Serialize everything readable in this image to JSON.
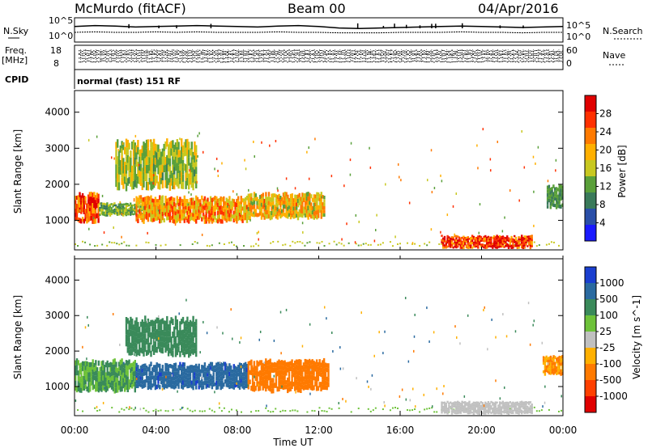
{
  "header": {
    "radar": "McMurdo (fitACF)",
    "beam": "Beam 00",
    "date": "04/Apr/2016"
  },
  "panel_labels": {
    "nsky": "N.Sky",
    "nsearch": "N.Search",
    "freq_top": "Freq.",
    "freq_unit": "[MHz]",
    "nave": "Nave",
    "cpid": "CPID",
    "mode": "normal (fast) 151 RF"
  },
  "chart_data": [
    {
      "name": "noise",
      "type": "line",
      "x": [
        0,
        1,
        2,
        3,
        4,
        5,
        6,
        7,
        8,
        9,
        10,
        11,
        12,
        13,
        14,
        15,
        16,
        17,
        18,
        19,
        20,
        21,
        22,
        23,
        24
      ],
      "series": [
        {
          "name": "N.Sky",
          "values": [
            3.2,
            3.4,
            3.3,
            3.1,
            3.2,
            3.3,
            3.4,
            3.3,
            3.2,
            3.1,
            3.3,
            3.4,
            3.2,
            2.9,
            2.8,
            2.9,
            3.0,
            3.1,
            3.2,
            3.3,
            3.2,
            3.1,
            3.0,
            3.1,
            3.2
          ]
        },
        {
          "name": "N.Search",
          "values": [
            2.0,
            2.1,
            2.0,
            2.0,
            2.1,
            2.0,
            2.1,
            2.0,
            2.0,
            2.0,
            2.1,
            2.0,
            2.0,
            1.9,
            1.9,
            1.9,
            2.0,
            2.0,
            2.0,
            2.1,
            2.0,
            2.0,
            1.9,
            2.0,
            2.0
          ]
        }
      ],
      "left_ticks": [
        "10^5",
        "10^0"
      ],
      "right_ticks": [
        "10^5",
        "10^0"
      ],
      "ylim": [
        0,
        5
      ]
    },
    {
      "name": "frequency",
      "type": "line",
      "left_ticks": [
        "18",
        "8"
      ],
      "right_ticks": [
        "60",
        "0"
      ],
      "ylim": [
        8,
        18
      ]
    },
    {
      "name": "power",
      "type": "heatmap",
      "ylabel": "Slant Range [km]",
      "yticks": [
        "1000",
        "2000",
        "3000",
        "4000"
      ],
      "ylim": [
        180,
        4600
      ],
      "xlim": [
        0,
        24
      ],
      "colorbar": {
        "label": "Power [dB]",
        "ticks": [
          "4",
          "8",
          "12",
          "16",
          "20",
          "24",
          "28"
        ],
        "range": [
          0,
          30
        ],
        "colors": [
          "#1a1aff",
          "#2a4fa8",
          "#3a7a5a",
          "#5aa03a",
          "#c8c820",
          "#ffb000",
          "#ff7a00",
          "#ff3000",
          "#e00000"
        ]
      },
      "regions": [
        {
          "t0": 0.0,
          "t1": 1.2,
          "r0": 900,
          "r1": 1800,
          "level": 24
        },
        {
          "t0": 1.2,
          "t1": 4.5,
          "r0": 1100,
          "r1": 1500,
          "level": 12
        },
        {
          "t0": 3.0,
          "t1": 8.5,
          "r0": 900,
          "r1": 1700,
          "level": 20
        },
        {
          "t0": 2.0,
          "t1": 6.0,
          "r0": 1800,
          "r1": 3300,
          "level": 14
        },
        {
          "t0": 8.5,
          "t1": 12.3,
          "r0": 1000,
          "r1": 1800,
          "level": 18
        },
        {
          "t0": 18.0,
          "t1": 22.5,
          "r0": 200,
          "r1": 600,
          "level": 26
        },
        {
          "t0": 23.2,
          "t1": 24.0,
          "r0": 1300,
          "r1": 2000,
          "level": 10
        }
      ]
    },
    {
      "name": "velocity",
      "type": "heatmap",
      "ylabel": "Slant Range [km]",
      "xlabel": "Time UT",
      "yticks": [
        "1000",
        "2000",
        "3000",
        "4000"
      ],
      "xticks": [
        "00:00",
        "04:00",
        "08:00",
        "12:00",
        "16:00",
        "20:00",
        "00:00"
      ],
      "ylim": [
        180,
        4600
      ],
      "xlim": [
        0,
        24
      ],
      "colorbar": {
        "label": "Velocity [m s^-1]",
        "ticks": [
          "1000",
          "500",
          "100",
          "25",
          "-25",
          "-100",
          "-500",
          "-1000"
        ],
        "colors": [
          "#1a3fd0",
          "#2a6aa0",
          "#3a8a5a",
          "#6ec23a",
          "#c0c0c0",
          "#ffb000",
          "#ff7a00",
          "#ff4000",
          "#e00000"
        ]
      },
      "regions": [
        {
          "t0": 0.0,
          "t1": 3.0,
          "r0": 800,
          "r1": 1800,
          "level": 100
        },
        {
          "t0": 3.0,
          "t1": 8.5,
          "r0": 900,
          "r1": 1700,
          "level": 800
        },
        {
          "t0": 2.5,
          "t1": 6.0,
          "r0": 1800,
          "r1": 3000,
          "level": 300
        },
        {
          "t0": 8.5,
          "t1": 12.5,
          "r0": 800,
          "r1": 1800,
          "level": -300
        },
        {
          "t0": 18.0,
          "t1": 22.5,
          "r0": 200,
          "r1": 600,
          "level": 0
        },
        {
          "t0": 23.0,
          "t1": 24.0,
          "r0": 1300,
          "r1": 1900,
          "level": -100
        }
      ]
    }
  ]
}
